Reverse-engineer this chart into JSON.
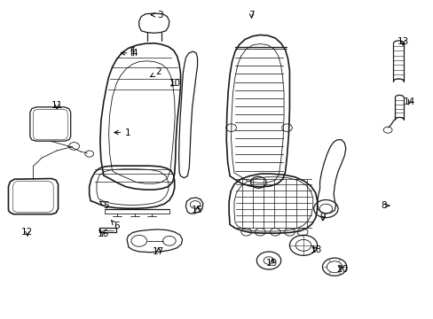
{
  "background_color": "#ffffff",
  "line_color": "#1a1a1a",
  "fig_width": 4.89,
  "fig_height": 3.6,
  "dpi": 100,
  "label_positions": {
    "1": [
      0.295,
      0.585,
      0.255,
      0.585
    ],
    "2": [
      0.365,
      0.775,
      0.34,
      0.755
    ],
    "3": [
      0.368,
      0.955,
      0.34,
      0.955
    ],
    "4": [
      0.31,
      0.835,
      0.27,
      0.835
    ],
    "5": [
      0.243,
      0.355,
      0.228,
      0.37
    ],
    "6": [
      0.268,
      0.29,
      0.255,
      0.31
    ],
    "7": [
      0.58,
      0.955,
      0.58,
      0.935
    ],
    "8": [
      0.885,
      0.355,
      0.9,
      0.355
    ],
    "9": [
      0.745,
      0.32,
      0.745,
      0.305
    ],
    "10": [
      0.403,
      0.74,
      0.388,
      0.725
    ],
    "11": [
      0.13,
      0.67,
      0.13,
      0.65
    ],
    "12": [
      0.062,
      0.27,
      0.062,
      0.25
    ],
    "13": [
      0.93,
      0.87,
      0.93,
      0.85
    ],
    "14": [
      0.945,
      0.68,
      0.94,
      0.665
    ],
    "15": [
      0.455,
      0.34,
      0.455,
      0.355
    ],
    "16": [
      0.238,
      0.265,
      0.228,
      0.28
    ],
    "17": [
      0.365,
      0.21,
      0.365,
      0.225
    ],
    "18": [
      0.73,
      0.215,
      0.715,
      0.23
    ],
    "19": [
      0.628,
      0.175,
      0.628,
      0.19
    ],
    "20": [
      0.79,
      0.155,
      0.775,
      0.17
    ]
  }
}
